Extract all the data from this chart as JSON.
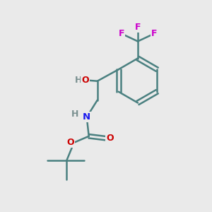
{
  "background_color": "#eaeaea",
  "bond_color": "#4a8080",
  "bond_width": 1.8,
  "atom_colors": {
    "F": "#cc00cc",
    "O": "#cc0000",
    "N": "#1a1aee",
    "H_gray": "#7a9090",
    "C": "#4a8080"
  },
  "figsize": [
    3.0,
    3.0
  ],
  "dpi": 100
}
